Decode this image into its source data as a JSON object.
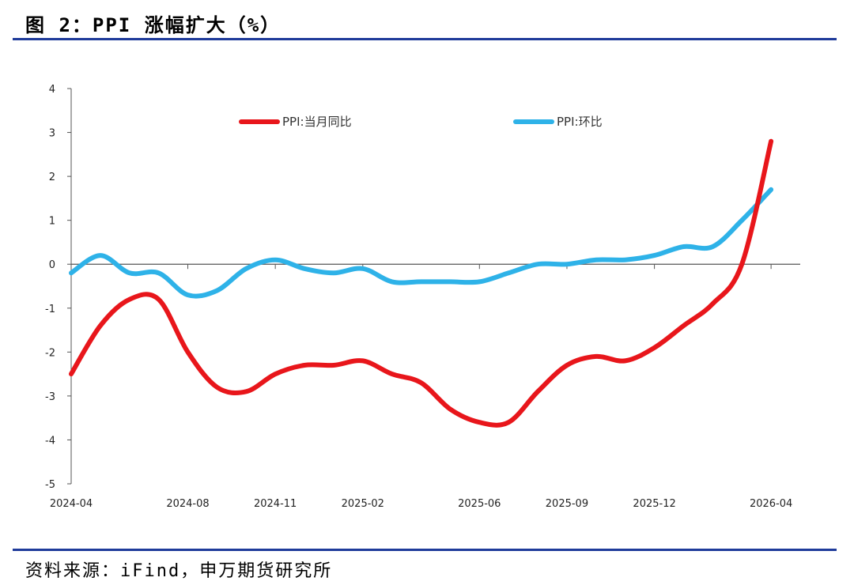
{
  "header": {
    "title": "图 2：PPI 涨幅扩大（%）"
  },
  "footer": {
    "source": "资料来源：iFind，申万期货研究所"
  },
  "chart_data": {
    "type": "line",
    "title": "图 2：PPI 涨幅扩大（%）",
    "xlabel": "",
    "ylabel": "",
    "ylim": [
      -5,
      4
    ],
    "yticks": [
      4,
      3,
      2,
      1,
      0,
      -1,
      -2,
      -3,
      -4,
      -5
    ],
    "x_tick_labels": [
      "2024-04",
      "2024-08",
      "2024-11",
      "2025-02",
      "2025-06",
      "2025-09",
      "2025-12",
      "2026-04"
    ],
    "x": [
      "2024-04",
      "2024-05",
      "2024-06",
      "2024-07",
      "2024-08",
      "2024-09",
      "2024-10",
      "2024-11",
      "2024-12",
      "2025-01",
      "2025-02",
      "2025-03",
      "2025-04",
      "2025-05",
      "2025-06",
      "2025-07",
      "2025-08",
      "2025-09",
      "2025-10",
      "2025-11",
      "2025-12",
      "2026-01",
      "2026-02",
      "2026-03",
      "2026-04"
    ],
    "series": [
      {
        "name": "PPI:当月同比",
        "color": "#e8161b",
        "values": [
          -2.5,
          -1.4,
          -0.8,
          -0.8,
          -2.0,
          -2.8,
          -2.9,
          -2.5,
          -2.3,
          -2.3,
          -2.2,
          -2.5,
          -2.7,
          -3.3,
          -3.6,
          -3.6,
          -2.9,
          -2.3,
          -2.1,
          -2.2,
          -1.9,
          -1.4,
          -0.9,
          0.0,
          2.8
        ]
      },
      {
        "name": "PPI:环比",
        "color": "#2eb2e8",
        "values": [
          -0.2,
          0.2,
          -0.2,
          -0.2,
          -0.7,
          -0.6,
          -0.1,
          0.1,
          -0.1,
          -0.2,
          -0.1,
          -0.4,
          -0.4,
          -0.4,
          -0.4,
          -0.2,
          0.0,
          0.0,
          0.1,
          0.1,
          0.2,
          0.4,
          0.4,
          1.0,
          1.7
        ]
      }
    ],
    "legend_position": "top-center"
  }
}
